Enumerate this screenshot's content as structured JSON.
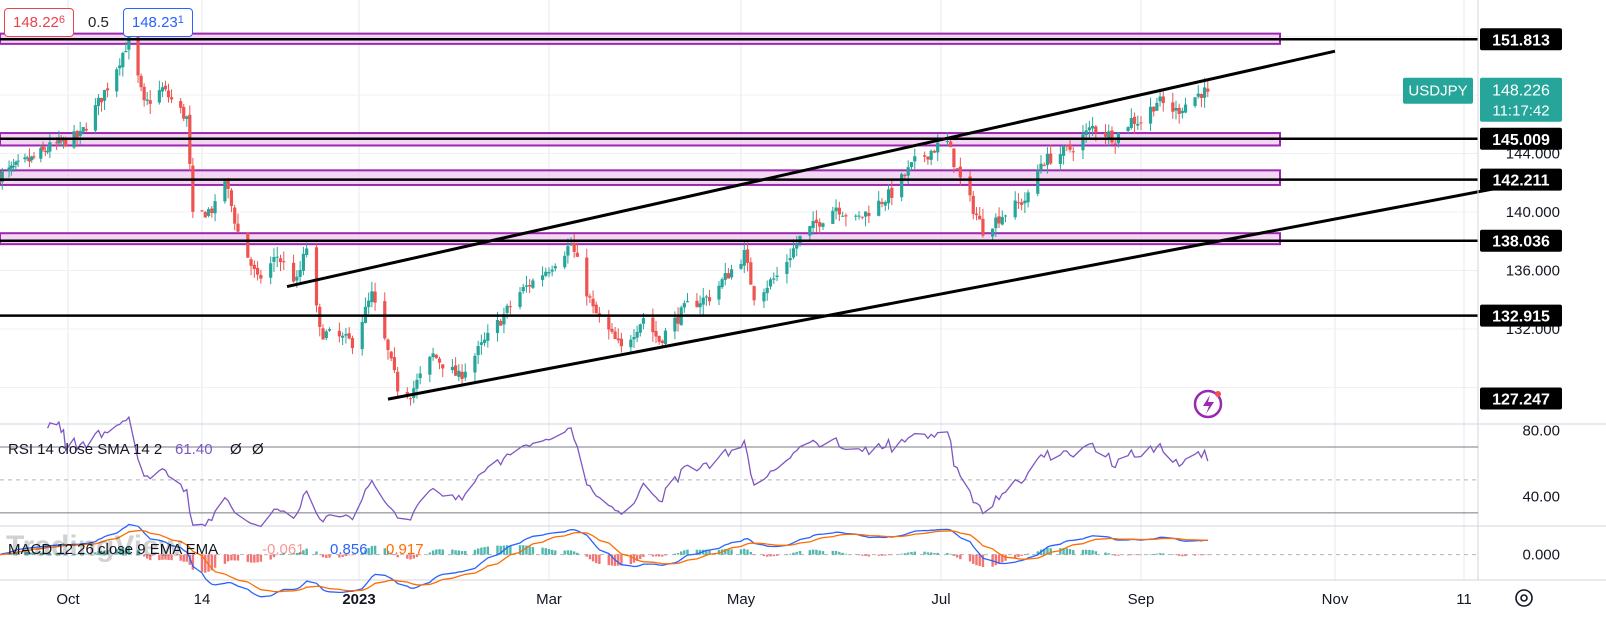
{
  "quote": {
    "bid": "148.22",
    "bid_small": "6",
    "spread": "0.5",
    "ask": "148.23",
    "ask_small": "1"
  },
  "watermark": "TradingView",
  "symbol": {
    "name": "USDJPY",
    "price": "148.226",
    "countdown": "11:17:42",
    "color": "#26a69a"
  },
  "colors": {
    "up": "#26a69a",
    "down": "#ef5350",
    "zone_fill": "#f0c9f0",
    "zone_border": "#9c27b0",
    "rsi": "#7e57c2",
    "macd": "#2962ff",
    "signal": "#ff6d00"
  },
  "chart_data": [
    {
      "type": "candlestick",
      "symbol": "USDJPY",
      "x_ticks": [
        "Oct",
        "14",
        "2023",
        "Mar",
        "May",
        "Jul",
        "Sep",
        "Nov",
        "11"
      ],
      "y_ticks": [
        "144.000",
        "140.000",
        "136.000",
        "132.000"
      ],
      "ylim": [
        125.5,
        154.5
      ],
      "grid": true,
      "price_levels": [
        "151.813",
        "145.009",
        "142.211",
        "138.036",
        "132.915",
        "127.247"
      ],
      "horizontal_lines": [
        151.813,
        145.009,
        142.211,
        138.036,
        132.915
      ],
      "zones": [
        {
          "low": 151.5,
          "high": 152.2
        },
        {
          "low": 144.55,
          "high": 145.4
        },
        {
          "low": 141.85,
          "high": 142.85
        },
        {
          "low": 137.8,
          "high": 138.55
        }
      ],
      "channel": [
        {
          "from": [
            "2022-12-10",
            134.9
          ],
          "to": [
            "2023-11-01",
            151.0
          ]
        },
        {
          "from": [
            "2023-01-10",
            127.2
          ],
          "to": [
            "2023-11-14",
            141.7
          ]
        }
      ],
      "current_price": 148.226,
      "anchors": [
        [
          "2022-09-01",
          142.5
        ],
        [
          "2022-09-15",
          143.6
        ],
        [
          "2022-09-23",
          144.4
        ],
        [
          "2022-10-05",
          145.2
        ],
        [
          "2022-10-14",
          148.6
        ],
        [
          "2022-10-21",
          151.8
        ],
        [
          "2022-10-26",
          147.3
        ],
        [
          "2022-11-01",
          148.4
        ],
        [
          "2022-11-09",
          146.4
        ],
        [
          "2022-11-11",
          139.6
        ],
        [
          "2022-11-18",
          140.3
        ],
        [
          "2022-11-21",
          142.2
        ],
        [
          "2022-11-25",
          138.6
        ],
        [
          "2022-12-01",
          135.3
        ],
        [
          "2022-12-07",
          137.0
        ],
        [
          "2022-12-13",
          135.2
        ],
        [
          "2022-12-16",
          137.6
        ],
        [
          "2022-12-20",
          131.8
        ],
        [
          "2022-12-30",
          131.1
        ],
        [
          "2023-01-05",
          134.3
        ],
        [
          "2023-01-13",
          128.0
        ],
        [
          "2023-01-17",
          127.6
        ],
        [
          "2023-01-24",
          130.2
        ],
        [
          "2023-02-01",
          128.7
        ],
        [
          "2023-02-10",
          131.4
        ],
        [
          "2023-02-20",
          134.5
        ],
        [
          "2023-03-01",
          136.2
        ],
        [
          "2023-03-08",
          137.8
        ],
        [
          "2023-03-15",
          133.3
        ],
        [
          "2023-03-24",
          130.6
        ],
        [
          "2023-03-31",
          132.8
        ],
        [
          "2023-04-05",
          131.2
        ],
        [
          "2023-04-14",
          133.6
        ],
        [
          "2023-04-21",
          134.2
        ],
        [
          "2023-05-02",
          137.1
        ],
        [
          "2023-05-05",
          134.3
        ],
        [
          "2023-05-12",
          135.6
        ],
        [
          "2023-05-19",
          138.2
        ],
        [
          "2023-05-30",
          140.4
        ],
        [
          "2023-06-05",
          139.4
        ],
        [
          "2023-06-16",
          141.3
        ],
        [
          "2023-06-23",
          143.4
        ],
        [
          "2023-06-30",
          144.5
        ],
        [
          "2023-07-03",
          144.7
        ],
        [
          "2023-07-07",
          142.2
        ],
        [
          "2023-07-14",
          138.8
        ],
        [
          "2023-07-20",
          139.8
        ],
        [
          "2023-07-28",
          141.0
        ],
        [
          "2023-08-01",
          143.4
        ],
        [
          "2023-08-10",
          144.3
        ],
        [
          "2023-08-17",
          145.8
        ],
        [
          "2023-08-24",
          145.1
        ],
        [
          "2023-08-29",
          146.3
        ],
        [
          "2023-09-01",
          146.2
        ],
        [
          "2023-09-06",
          147.6
        ],
        [
          "2023-09-12",
          146.9
        ],
        [
          "2023-09-20",
          148.2
        ],
        [
          "2023-09-22",
          148.226
        ]
      ]
    },
    {
      "type": "line",
      "title": "RSI 14 close SMA 14 2",
      "values_text": [
        "61.40",
        "Ø",
        "Ø"
      ],
      "y_ticks": [
        "80.00",
        "40.00"
      ],
      "ylim": [
        22,
        84
      ],
      "bands": [
        70,
        30
      ],
      "midline": 50,
      "current": 61.4
    },
    {
      "type": "line",
      "title": "MACD 12 26 close 9 EMA EMA",
      "values_text": [
        "-0.061",
        "0.856",
        "0.917"
      ],
      "y_ticks": [
        "0.000"
      ],
      "ylim": [
        -1.6,
        1.8
      ],
      "series": [
        {
          "name": "MACD",
          "color": "#2962ff"
        },
        {
          "name": "Signal",
          "color": "#ff6d00"
        }
      ]
    }
  ]
}
